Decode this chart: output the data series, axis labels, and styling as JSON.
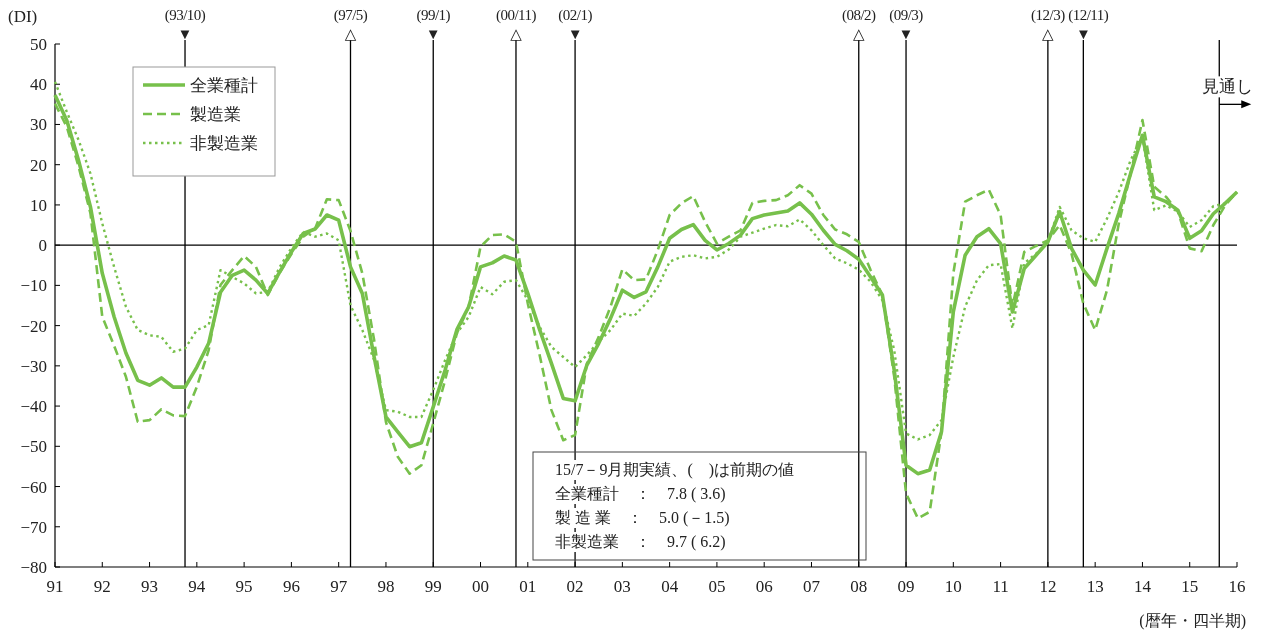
{
  "chart_data": {
    "type": "line",
    "ylabel": "(DI)",
    "xlabel": "(暦年・四半期)",
    "x": [
      1991,
      1991.25,
      1991.5,
      1991.75,
      1992,
      1992.25,
      1992.5,
      1992.75,
      1993,
      1993.25,
      1993.5,
      1993.75,
      1994,
      1994.25,
      1994.5,
      1994.75,
      1995,
      1995.25,
      1995.5,
      1995.75,
      1996,
      1996.25,
      1996.5,
      1996.75,
      1997,
      1997.25,
      1997.5,
      1997.75,
      1998,
      1998.25,
      1998.5,
      1998.75,
      1999,
      1999.25,
      1999.5,
      1999.75,
      2000,
      2000.25,
      2000.5,
      2000.75,
      2001,
      2001.25,
      2001.5,
      2001.75,
      2002,
      2002.25,
      2002.5,
      2002.75,
      2003,
      2003.25,
      2003.5,
      2003.75,
      2004,
      2004.25,
      2004.5,
      2004.75,
      2005,
      2005.25,
      2005.5,
      2005.75,
      2006,
      2006.25,
      2006.5,
      2006.75,
      2007,
      2007.25,
      2007.5,
      2007.75,
      2008,
      2008.25,
      2008.5,
      2008.75,
      2009,
      2009.25,
      2009.5,
      2009.75,
      2010,
      2010.25,
      2010.5,
      2010.75,
      2011,
      2011.25,
      2011.5,
      2011.75,
      2012,
      2012.25,
      2012.5,
      2012.75,
      2013,
      2013.25,
      2013.5,
      2013.75,
      2014,
      2014.25,
      2014.5,
      2014.75,
      2015,
      2015.25,
      2015.5,
      2015.75,
      2016
    ],
    "series": [
      {
        "name": "全業種計",
        "color": "#77c04b",
        "line_style": "solid",
        "values": [
          37.3,
          31,
          21,
          9.5,
          -7,
          -17.8,
          -26.8,
          -33.6,
          -34.8,
          -33,
          -35.3,
          -35.3,
          -30.3,
          -24.4,
          -11.7,
          -7.5,
          -6.2,
          -8.7,
          -12,
          -6.7,
          -1.7,
          2.9,
          4,
          7.5,
          6.2,
          -5.4,
          -12,
          -27.8,
          -42.7,
          -46.4,
          -50.1,
          -49.1,
          -40.2,
          -31.1,
          -21,
          -15.3,
          -5.4,
          -4.4,
          -2.7,
          -3.7,
          -12,
          -21,
          -29.4,
          -38.1,
          -38.7,
          -29.8,
          -24.4,
          -18.2,
          -11.2,
          -13,
          -11.6,
          -5.4,
          1.7,
          3.9,
          5.1,
          1.2,
          -1.2,
          0.4,
          2.5,
          6.6,
          7.5,
          8,
          8.5,
          10.5,
          7.7,
          3.7,
          0.2,
          -1.4,
          -3.5,
          -7.9,
          -12.4,
          -31.1,
          -54.7,
          -56.8,
          -55.9,
          -46.4,
          -16.6,
          -2.5,
          2.1,
          4.1,
          0.4,
          -16.6,
          -5.8,
          -2.5,
          0.8,
          8.3,
          -0.8,
          -6.2,
          -9.9,
          -0.8,
          7.9,
          17.8,
          27.3,
          12,
          10.8,
          8.7,
          1.7,
          3.6,
          7.8,
          10.4,
          13.2
        ]
      },
      {
        "name": "製造業",
        "color": "#77c04b",
        "line_style": "dashed",
        "values": [
          35.2,
          29.4,
          19.5,
          7.9,
          -17.8,
          -25,
          -32.7,
          -43.9,
          -43.5,
          -40.8,
          -42.3,
          -42.5,
          -35.2,
          -26.1,
          -9.9,
          -6.2,
          -2.7,
          -5.4,
          -12.4,
          -6.9,
          -2.2,
          2.1,
          4.1,
          11.4,
          11.2,
          3.5,
          -7,
          -23.6,
          -44,
          -52.6,
          -56.8,
          -54.7,
          -44.3,
          -33.6,
          -21.9,
          -15.3,
          -0.4,
          2.5,
          2.7,
          0.8,
          -14.5,
          -27.3,
          -41,
          -48.5,
          -47.2,
          -29.4,
          -22.8,
          -15.3,
          -6,
          -8.7,
          -8.5,
          -1.2,
          7.5,
          10.4,
          12.2,
          5.8,
          0.4,
          2.1,
          3.7,
          10.5,
          11,
          11.2,
          12.4,
          14.9,
          12.8,
          7.5,
          3.9,
          2.7,
          0.8,
          -6.2,
          -12.4,
          -32.7,
          -61.7,
          -67.9,
          -66.3,
          -46.4,
          -7,
          10.8,
          12.4,
          13.8,
          7.5,
          -15.3,
          -1.7,
          -0.2,
          1.2,
          5,
          -2.1,
          -14.5,
          -21.1,
          -11.2,
          5.4,
          17.8,
          31.1,
          14.5,
          12,
          8.3,
          -0.8,
          -1.5,
          5.0,
          9.9,
          13.2
        ]
      },
      {
        "name": "非製造業",
        "color": "#77c04b",
        "line_style": "dotted",
        "values": [
          40.6,
          33.1,
          26.1,
          17.8,
          5.4,
          -5.4,
          -15.3,
          -21.1,
          -22.4,
          -22.8,
          -26.5,
          -25.7,
          -21.1,
          -19.9,
          -6.2,
          -7.9,
          -9.5,
          -12,
          -11.6,
          -5.5,
          -0.7,
          3.3,
          2.1,
          2.9,
          1.2,
          -15,
          -21.1,
          -28.6,
          -41,
          -41.4,
          -42.7,
          -42.7,
          -36,
          -28.6,
          -21.9,
          -17.8,
          -10.4,
          -12.2,
          -9.1,
          -8.7,
          -13.7,
          -20.3,
          -25.3,
          -27.8,
          -30.3,
          -27.3,
          -24,
          -21.1,
          -17,
          -17.6,
          -14.5,
          -10.4,
          -4.1,
          -2.9,
          -2.5,
          -3.3,
          -2.9,
          -1.1,
          2.1,
          3.1,
          4.1,
          5,
          4.7,
          6.4,
          3.7,
          0,
          -3.3,
          -4.5,
          -6.1,
          -9.1,
          -13.7,
          -26.1,
          -46.8,
          -48.3,
          -47.2,
          -43.5,
          -27.8,
          -15.3,
          -8.7,
          -5,
          -4.7,
          -20.7,
          -4.5,
          -2.1,
          0.8,
          9.5,
          3.7,
          1.7,
          0.8,
          6.6,
          13.2,
          21.1,
          26.9,
          8.7,
          9.9,
          8.3,
          4.5,
          6.2,
          9.7,
          10.4,
          13.2
        ]
      }
    ],
    "xlim": [
      1991,
      2016
    ],
    "xticks": [
      {
        "value": 1991,
        "label": "91"
      },
      {
        "value": 1992,
        "label": "92"
      },
      {
        "value": 1993,
        "label": "93"
      },
      {
        "value": 1994,
        "label": "94"
      },
      {
        "value": 1995,
        "label": "95"
      },
      {
        "value": 1996,
        "label": "96"
      },
      {
        "value": 1997,
        "label": "97"
      },
      {
        "value": 1998,
        "label": "98"
      },
      {
        "value": 1999,
        "label": "99"
      },
      {
        "value": 2000,
        "label": "00"
      },
      {
        "value": 2001,
        "label": "01"
      },
      {
        "value": 2002,
        "label": "02"
      },
      {
        "value": 2003,
        "label": "03"
      },
      {
        "value": 2004,
        "label": "04"
      },
      {
        "value": 2005,
        "label": "05"
      },
      {
        "value": 2006,
        "label": "06"
      },
      {
        "value": 2007,
        "label": "07"
      },
      {
        "value": 2008,
        "label": "08"
      },
      {
        "value": 2009,
        "label": "09"
      },
      {
        "value": 2010,
        "label": "10"
      },
      {
        "value": 2011,
        "label": "11"
      },
      {
        "value": 2012,
        "label": "12"
      },
      {
        "value": 2013,
        "label": "13"
      },
      {
        "value": 2014,
        "label": "14"
      },
      {
        "value": 2015,
        "label": "15"
      },
      {
        "value": 2016,
        "label": "16"
      }
    ],
    "ylim": [
      -80,
      50
    ],
    "yticks": [
      -80,
      -70,
      -60,
      -50,
      -40,
      -30,
      -20,
      -10,
      0,
      10,
      20,
      30,
      40,
      50
    ],
    "ref_lines": [
      {
        "axis": "y",
        "value": 0,
        "color": "#000000"
      },
      {
        "axis": "x",
        "value": 1993.75,
        "label": "(93/10)\n▼",
        "color": "#000000"
      },
      {
        "axis": "x",
        "value": 1997.25,
        "label": "(97/5)\n△",
        "color": "#000000"
      },
      {
        "axis": "x",
        "value": 1999,
        "label": "(99/1)\n▼",
        "color": "#000000"
      },
      {
        "axis": "x",
        "value": 2000.75,
        "label": "(00/11)\n△",
        "color": "#000000"
      },
      {
        "axis": "x",
        "value": 2002,
        "label": "(02/1)\n▼",
        "color": "#000000"
      },
      {
        "axis": "x",
        "value": 2008,
        "label": "(08/2)\n△",
        "color": "#000000"
      },
      {
        "axis": "x",
        "value": 2009,
        "label": "(09/3)\n▼",
        "color": "#000000"
      },
      {
        "axis": "x",
        "value": 2012,
        "label": "(12/3)\n△",
        "color": "#000000"
      },
      {
        "axis": "x",
        "value": 2012.75,
        "label": "(12/11)\n▼",
        "color": "#000000"
      },
      {
        "axis": "x",
        "value": 2015.625,
        "color": "#000000"
      }
    ],
    "annotations": [
      {
        "text": "見通し",
        "x": 2015.625,
        "y": 35
      },
      "15/7－9月期実績、(　)は前期の値",
      "全業種計　：　7.8 ( 3.6)",
      "製 造 業　：　5.0 (－1.5)",
      "非製造業　：　9.7 ( 6.2)"
    ],
    "legend": "top left",
    "grid": false
  }
}
